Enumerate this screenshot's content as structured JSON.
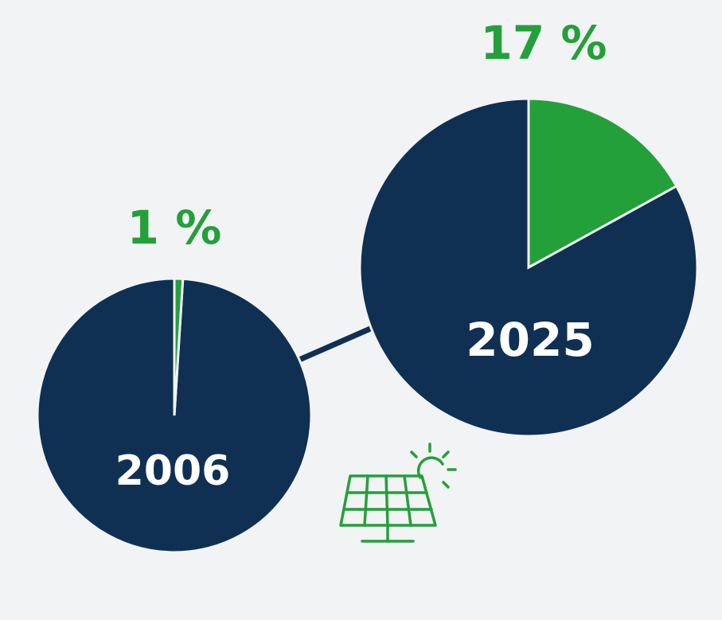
{
  "colors": {
    "background": "#f2f3f5",
    "share": "#23a03a",
    "rest": "#0f3052",
    "year_text": "#ffffff"
  },
  "chart_data": [
    {
      "type": "pie",
      "title": "",
      "year": "2006",
      "share_percent": 1,
      "share_label": "1 %",
      "slices": [
        {
          "label": "share",
          "value": 1,
          "color": "#23a03a"
        },
        {
          "label": "rest",
          "value": 99,
          "color": "#0f3052"
        }
      ]
    },
    {
      "type": "pie",
      "title": "",
      "year": "2025",
      "share_percent": 17,
      "share_label": "17 %",
      "slices": [
        {
          "label": "share",
          "value": 17,
          "color": "#23a03a"
        },
        {
          "label": "rest",
          "value": 83,
          "color": "#0f3052"
        }
      ]
    }
  ],
  "icon": {
    "name": "solar-panel-icon"
  }
}
